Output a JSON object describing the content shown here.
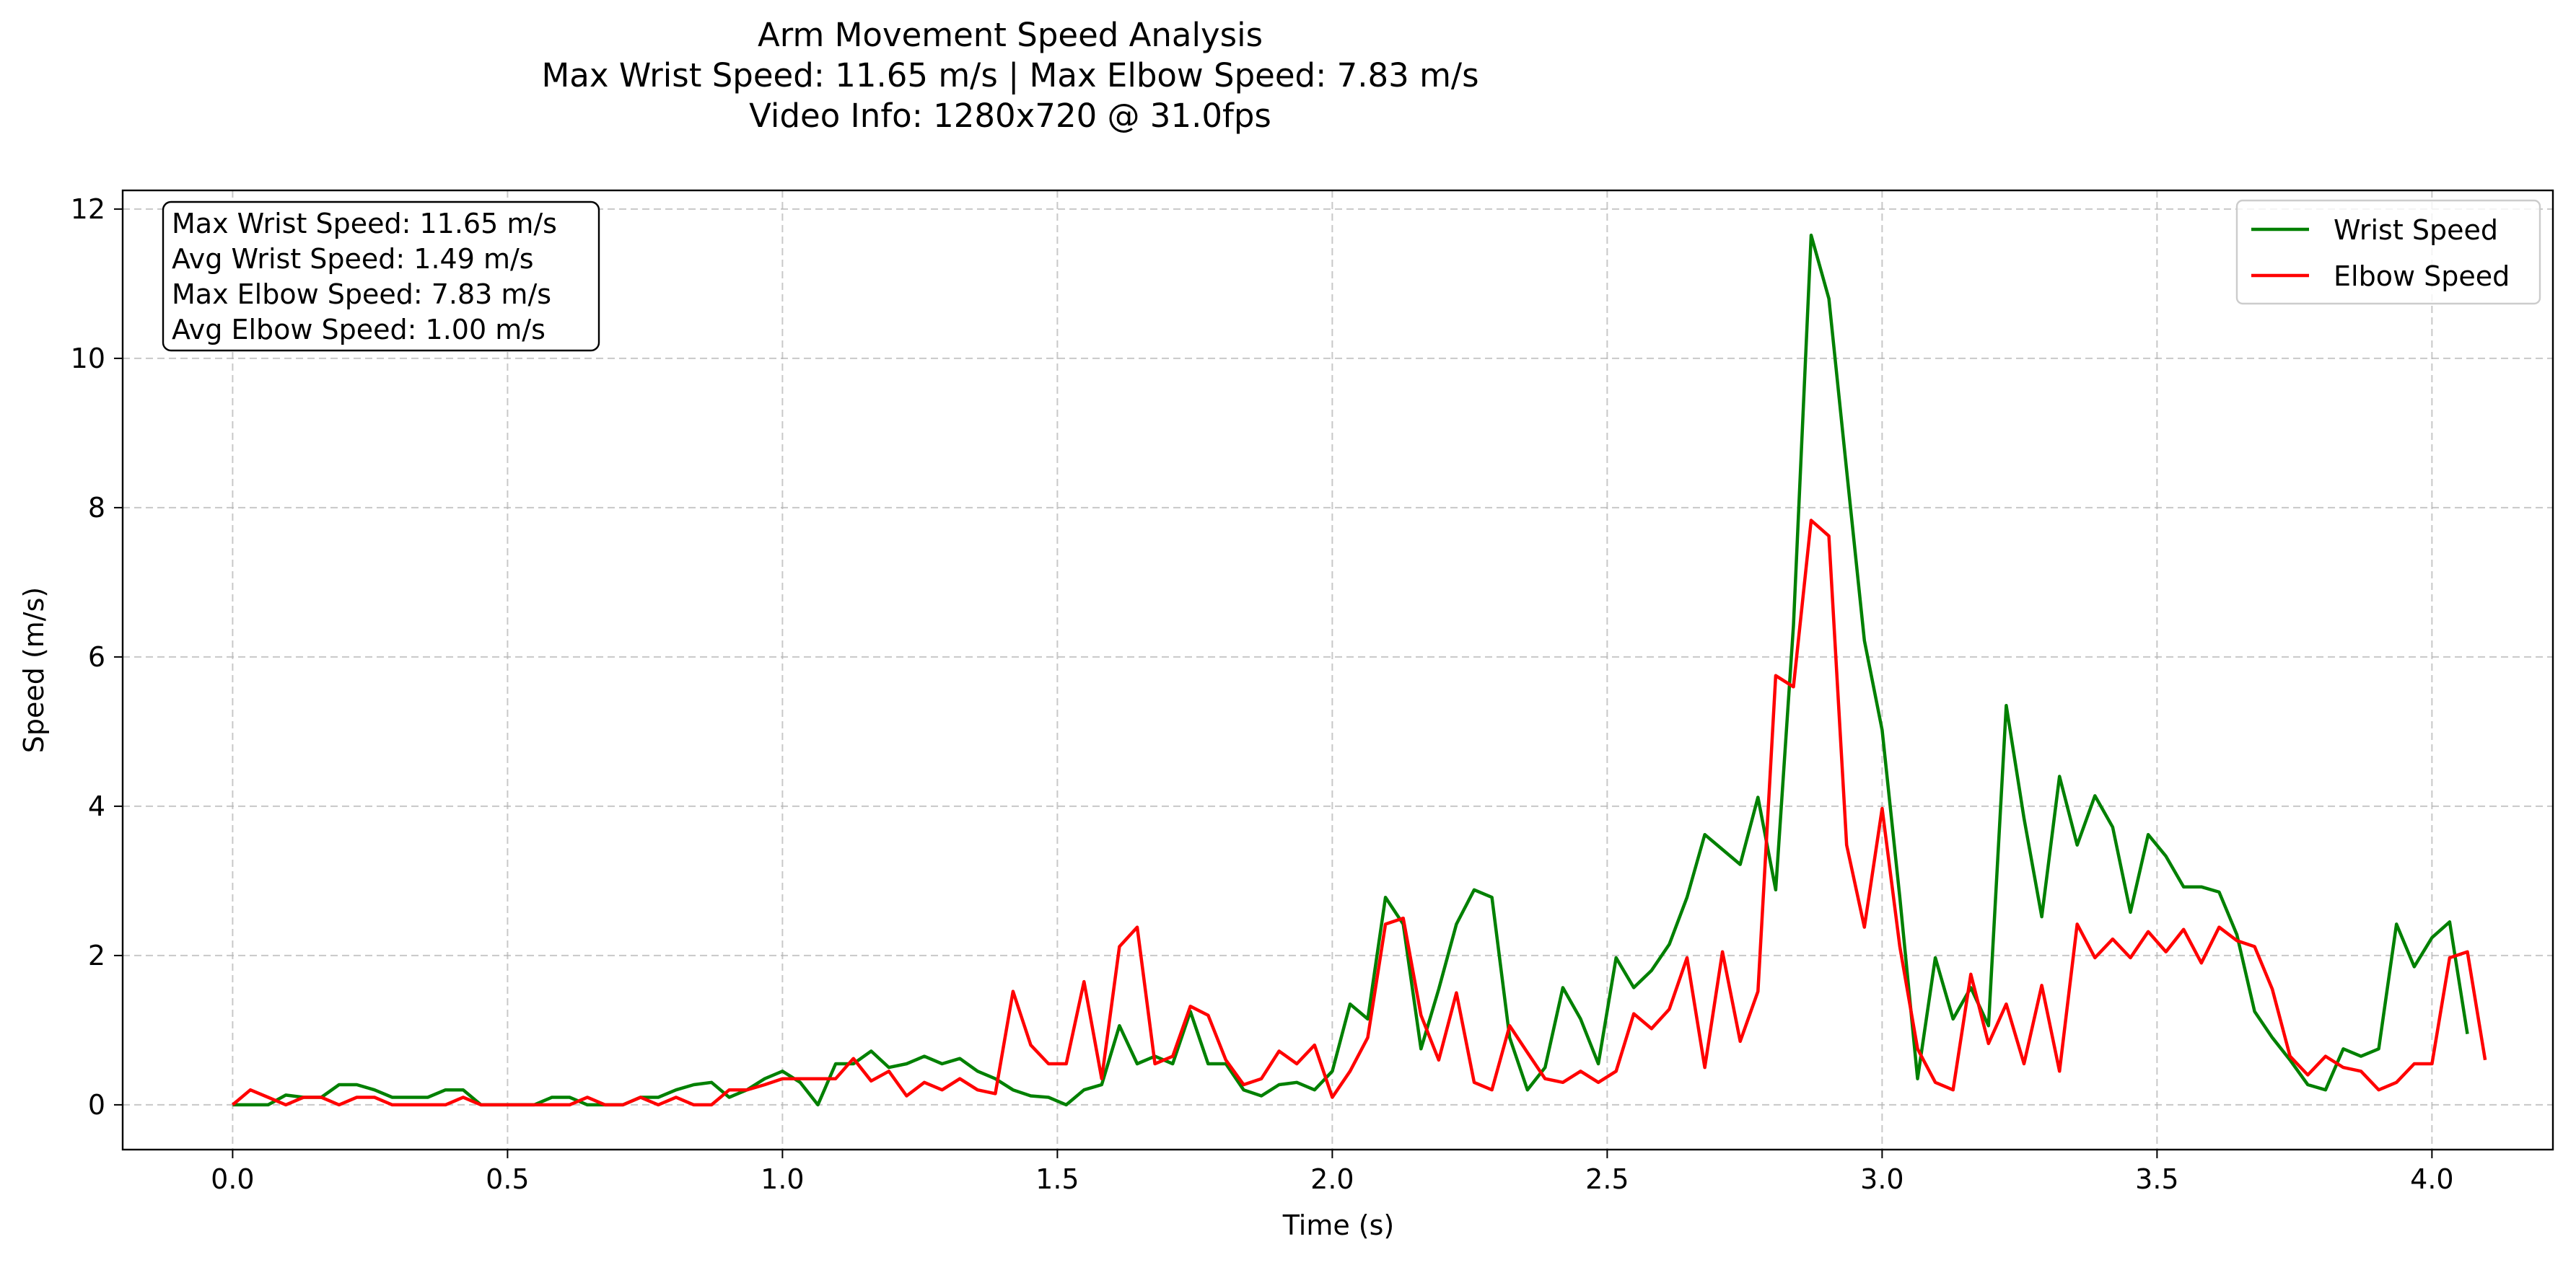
{
  "chart_data": {
    "type": "line",
    "title_lines": [
      "Arm Movement Speed Analysis",
      "Max Wrist Speed: 11.65 m/s | Max Elbow Speed: 7.83 m/s",
      "Video Info: 1280x720 @ 31.0fps"
    ],
    "xlabel": "Time (s)",
    "ylabel": "Speed (m/s)",
    "xlim": [
      -0.2,
      4.22
    ],
    "ylim": [
      -0.6,
      12.25
    ],
    "xticks": [
      0.0,
      0.5,
      1.0,
      1.5,
      2.0,
      2.5,
      3.0,
      3.5,
      4.0
    ],
    "xtick_labels": [
      "0.0",
      "0.5",
      "1.0",
      "1.5",
      "2.0",
      "2.5",
      "3.0",
      "3.5",
      "4.0"
    ],
    "yticks": [
      0,
      2,
      4,
      6,
      8,
      10,
      12
    ],
    "ytick_labels": [
      "0",
      "2",
      "4",
      "6",
      "8",
      "10",
      "12"
    ],
    "grid": true,
    "legend_position": "top-right",
    "stats_box_position": "top-left",
    "stats_lines": [
      "Max Wrist Speed: 11.65 m/s",
      "Avg Wrist Speed: 1.49 m/s",
      "Max Elbow Speed: 7.83 m/s",
      "Avg Elbow Speed: 1.00 m/s"
    ],
    "x_step": 0.032258,
    "series": [
      {
        "name": "Wrist Speed",
        "color": "#008000",
        "values": [
          0,
          0,
          0,
          0.13,
          0.1,
          0.1,
          0.27,
          0.27,
          0.2,
          0.1,
          0.1,
          0.1,
          0.2,
          0.2,
          0,
          0,
          0,
          0,
          0.1,
          0.1,
          0,
          0,
          0,
          0.1,
          0.1,
          0.2,
          0.27,
          0.3,
          0.1,
          0.2,
          0.35,
          0.45,
          0.3,
          0,
          0.55,
          0.55,
          0.72,
          0.5,
          0.55,
          0.65,
          0.55,
          0.62,
          0.45,
          0.35,
          0.2,
          0.12,
          0.1,
          0,
          0.2,
          0.27,
          1.06,
          0.55,
          0.65,
          0.55,
          1.25,
          0.55,
          0.55,
          0.2,
          0.12,
          0.27,
          0.3,
          0.2,
          0.45,
          1.35,
          1.15,
          2.78,
          2.42,
          0.75,
          1.55,
          2.42,
          2.88,
          2.78,
          0.9,
          0.2,
          0.5,
          1.57,
          1.15,
          0.55,
          1.97,
          1.57,
          1.8,
          2.15,
          2.78,
          3.62,
          3.42,
          3.22,
          4.12,
          2.88,
          6.42,
          11.65,
          10.8,
          8.5,
          6.22,
          5.02,
          2.78,
          0.35,
          1.97,
          1.15,
          1.57,
          1.06,
          5.35,
          3.84,
          2.52,
          4.4,
          3.48,
          4.14,
          3.72,
          2.58,
          3.62,
          3.33,
          2.92,
          2.92,
          2.85,
          2.28,
          1.25,
          0.9,
          0.6,
          0.27,
          0.2,
          0.75,
          0.65,
          0.75,
          2.42,
          1.85,
          2.24,
          2.45,
          0.95
        ]
      },
      {
        "name": "Elbow Speed",
        "color": "#ff0000",
        "values": [
          0,
          0.2,
          0.1,
          0,
          0.1,
          0.1,
          0,
          0.1,
          0.1,
          0,
          0,
          0,
          0,
          0.1,
          0,
          0,
          0,
          0,
          0,
          0,
          0.1,
          0,
          0,
          0.1,
          0,
          0.1,
          0,
          0,
          0.2,
          0.2,
          0.27,
          0.35,
          0.35,
          0.35,
          0.35,
          0.62,
          0.32,
          0.45,
          0.12,
          0.3,
          0.2,
          0.35,
          0.2,
          0.15,
          1.52,
          0.8,
          0.55,
          0.55,
          1.65,
          0.35,
          2.12,
          2.38,
          0.55,
          0.65,
          1.32,
          1.2,
          0.6,
          0.27,
          0.35,
          0.72,
          0.55,
          0.8,
          0.1,
          0.45,
          0.9,
          2.42,
          2.5,
          1.2,
          0.6,
          1.5,
          0.3,
          0.2,
          1.06,
          0.7,
          0.35,
          0.3,
          0.45,
          0.3,
          0.45,
          1.22,
          1.02,
          1.28,
          1.97,
          0.5,
          2.05,
          0.85,
          1.52,
          5.75,
          5.6,
          7.83,
          7.62,
          3.48,
          2.38,
          3.97,
          2.12,
          0.75,
          0.3,
          0.2,
          1.75,
          0.82,
          1.35,
          0.55,
          1.6,
          0.45,
          2.42,
          1.97,
          2.22,
          1.97,
          2.32,
          2.05,
          2.35,
          1.9,
          2.38,
          2.2,
          2.12,
          1.55,
          0.65,
          0.4,
          0.65,
          0.5,
          0.45,
          0.2,
          0.3,
          0.55,
          0.55,
          1.97,
          2.05,
          0.6
        ]
      }
    ]
  }
}
